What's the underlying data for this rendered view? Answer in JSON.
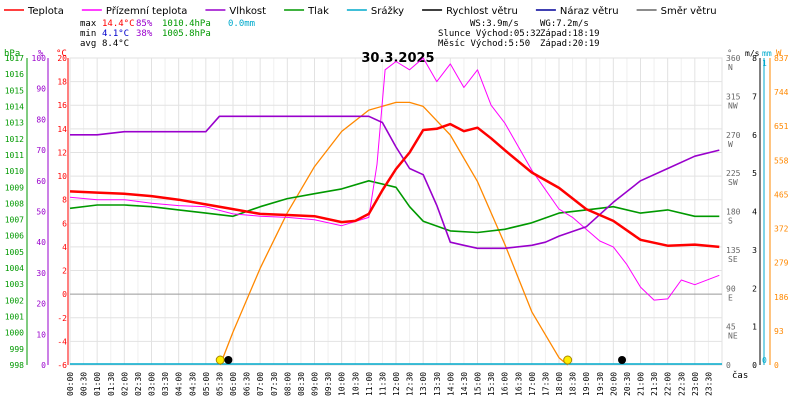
{
  "chart_data": {
    "type": "line",
    "title": "30.3.2025",
    "legend": [
      {
        "label": "Teplota",
        "color": "#ff0000"
      },
      {
        "label": "Přízemní teplota",
        "color": "#ff00ff"
      },
      {
        "label": "Vlhkost",
        "color": "#9900cc"
      },
      {
        "label": "Tlak",
        "color": "#009900"
      },
      {
        "label": "Srážky",
        "color": "#00aacc"
      },
      {
        "label": "Rychlost větru",
        "color": "#000000"
      },
      {
        "label": "Náraz větru",
        "color": "#000099"
      },
      {
        "label": "Směr větru",
        "color": "#666666"
      }
    ],
    "stats": {
      "max": {
        "label": "max",
        "temp": "14.4°C",
        "hum": "85%",
        "press": "1010.4hPa",
        "rain": "0.0mm"
      },
      "min": {
        "label": "min",
        "temp": "4.1°C",
        "hum": "38%",
        "press": "1005.8hPa"
      },
      "avg": {
        "label": "avg",
        "temp": "8.4°C"
      }
    },
    "info": {
      "ws": "WS:3.9m/s",
      "wg": "WG:7.2m/s",
      "sun_rise": "Slunce Východ:05:32",
      "sun_set": "Západ:18:19",
      "moon_rise": "Měsíc Východ:5:50",
      "moon_set": "Západ:20:19"
    },
    "axes": {
      "hpa": {
        "label": "hPa",
        "ticks": [
          "1017",
          "1016",
          "1015",
          "1014",
          "1013",
          "1012",
          "1011",
          "1010",
          "1009",
          "1008",
          "1007",
          "1006",
          "1005",
          "1004",
          "1003",
          "1002",
          "1001",
          "1000",
          "999",
          "998"
        ],
        "range": [
          998,
          1017
        ]
      },
      "pct": {
        "label": "%",
        "ticks": [
          "100",
          "90",
          "80",
          "70",
          "60",
          "50",
          "40",
          "30",
          "20",
          "10",
          "0"
        ],
        "range": [
          0,
          100
        ]
      },
      "temp": {
        "label": "°C",
        "ticks": [
          "20",
          "18",
          "16",
          "14",
          "12",
          "10",
          "8",
          "6",
          "4",
          "2",
          "0",
          "-2",
          "-4",
          "-6"
        ],
        "range": [
          -6,
          20
        ]
      },
      "deg": {
        "label": "°",
        "ticks": [
          {
            "v": "360",
            "d": "N"
          },
          {
            "v": "315",
            "d": "NW"
          },
          {
            "v": "270",
            "d": "W"
          },
          {
            "v": "225",
            "d": "SW"
          },
          {
            "v": "180",
            "d": "S"
          },
          {
            "v": "135",
            "d": "SE"
          },
          {
            "v": "90",
            "d": "E"
          },
          {
            "v": "45",
            "d": "NE"
          },
          {
            "v": "0",
            "d": ""
          }
        ],
        "range": [
          0,
          360
        ]
      },
      "ms": {
        "label": "m/s",
        "ticks": [
          "8",
          "7",
          "6",
          "5",
          "4",
          "3",
          "2",
          "1",
          "0"
        ],
        "range": [
          0,
          8
        ]
      },
      "mm": {
        "label": "mm",
        "ticks": [
          "1",
          "0"
        ],
        "range": [
          0,
          1
        ]
      },
      "w": {
        "label": "W",
        "ticks": [
          "837",
          "744",
          "651",
          "558",
          "465",
          "372",
          "279",
          "186",
          "93",
          "0"
        ],
        "range": [
          0,
          837
        ]
      },
      "x": {
        "label": "čas",
        "ticks": [
          "00:00",
          "00:30",
          "01:00",
          "01:30",
          "02:00",
          "02:30",
          "03:00",
          "03:30",
          "04:00",
          "04:30",
          "05:00",
          "05:30",
          "06:00",
          "06:30",
          "07:00",
          "07:30",
          "08:00",
          "08:30",
          "09:00",
          "09:30",
          "10:00",
          "10:30",
          "11:00",
          "11:30",
          "12:00",
          "12:30",
          "13:00",
          "13:30",
          "14:00",
          "14:30",
          "15:00",
          "15:30",
          "16:00",
          "16:30",
          "17:00",
          "17:30",
          "18:00",
          "18:30",
          "19:00",
          "19:30",
          "20:00",
          "20:30",
          "21:00",
          "21:30",
          "22:00",
          "22:30",
          "23:00",
          "23:30"
        ]
      }
    },
    "series": [
      {
        "name": "Teplota",
        "color": "#ff0000",
        "x": [
          0,
          1,
          2,
          3,
          4,
          5,
          6,
          7,
          8,
          9,
          10,
          10.5,
          11,
          11.5,
          12,
          12.5,
          13,
          13.5,
          14,
          14.5,
          15,
          15.5,
          16,
          17,
          18,
          19,
          20,
          21,
          22,
          23,
          23.9
        ],
        "y": [
          8.7,
          8.6,
          8.5,
          8.3,
          8.0,
          7.6,
          7.2,
          6.8,
          6.7,
          6.6,
          6.1,
          6.2,
          6.8,
          8.8,
          10.6,
          12.0,
          13.9,
          14.0,
          14.4,
          13.8,
          14.1,
          13.2,
          12.2,
          10.3,
          9.0,
          7.2,
          6.2,
          4.6,
          4.1,
          4.2,
          4.0
        ]
      },
      {
        "name": "Přízemní teplota",
        "color": "#ff00ff",
        "x": [
          0,
          1,
          2,
          3,
          4,
          5,
          6,
          7,
          8,
          9,
          10,
          11,
          11.3,
          11.6,
          12,
          12.5,
          13,
          13.5,
          14,
          14.5,
          15,
          15.5,
          16,
          16.5,
          17,
          18,
          18.5,
          19,
          19.5,
          20,
          20.5,
          21,
          21.5,
          22,
          22.5,
          23,
          23.9
        ],
        "y": [
          8.2,
          8.0,
          8.0,
          7.7,
          7.5,
          7.4,
          6.8,
          6.6,
          6.5,
          6.3,
          5.8,
          6.5,
          11.0,
          19.0,
          19.7,
          19.0,
          20.0,
          18.0,
          19.5,
          17.5,
          19.0,
          16.0,
          14.5,
          12.5,
          10.5,
          7.2,
          6.5,
          5.5,
          4.5,
          4.0,
          2.5,
          0.6,
          -0.5,
          -0.4,
          1.2,
          0.8,
          1.6
        ]
      },
      {
        "name": "Vlhkost",
        "color": "#9900cc",
        "x": [
          0,
          1,
          2,
          3,
          4,
          5,
          5.5,
          6,
          7,
          8,
          9,
          10,
          11,
          11.5,
          12,
          12.5,
          13,
          13.5,
          14,
          14.5,
          15,
          16,
          17,
          17.5,
          18,
          19,
          20,
          21,
          22,
          23,
          23.9
        ],
        "y": [
          75,
          75,
          76,
          76,
          76,
          76,
          81,
          81,
          81,
          81,
          81,
          81,
          81,
          79,
          71,
          64,
          62,
          52,
          40,
          39,
          38,
          38,
          39,
          40,
          42,
          45,
          53,
          60,
          64,
          68,
          70
        ]
      },
      {
        "name": "Tlak",
        "color": "#009900",
        "x": [
          0,
          1,
          2,
          3,
          4,
          5,
          6,
          7,
          8,
          9,
          10,
          11,
          12,
          12.5,
          13,
          14,
          15,
          16,
          17,
          18,
          19,
          20,
          21,
          22,
          23,
          23.9
        ],
        "y": [
          1007.7,
          1007.9,
          1007.9,
          1007.8,
          1007.6,
          1007.4,
          1007.2,
          1007.8,
          1008.3,
          1008.6,
          1008.9,
          1009.4,
          1009.0,
          1007.8,
          1006.9,
          1006.3,
          1006.2,
          1006.4,
          1006.8,
          1007.4,
          1007.6,
          1007.8,
          1007.4,
          1007.6,
          1007.2,
          1007.2
        ]
      },
      {
        "name": "Slunce",
        "color": "#ff8800",
        "x": [
          5.53,
          6,
          7,
          8,
          9,
          10,
          11,
          12,
          12.5,
          13,
          14,
          15,
          16,
          17,
          18,
          18.32
        ],
        "y": [
          0,
          90,
          264,
          415,
          541,
          637,
          695,
          716,
          716,
          705,
          627,
          500,
          330,
          145,
          20,
          0
        ]
      }
    ],
    "rain_mm": 0.0,
    "marks": [
      {
        "label": "sunrise",
        "x": 5.53
      },
      {
        "label": "sunset",
        "x": 18.32
      },
      {
        "label": "moonrise",
        "x": 5.83
      },
      {
        "label": "moonset",
        "x": 20.32
      }
    ]
  }
}
